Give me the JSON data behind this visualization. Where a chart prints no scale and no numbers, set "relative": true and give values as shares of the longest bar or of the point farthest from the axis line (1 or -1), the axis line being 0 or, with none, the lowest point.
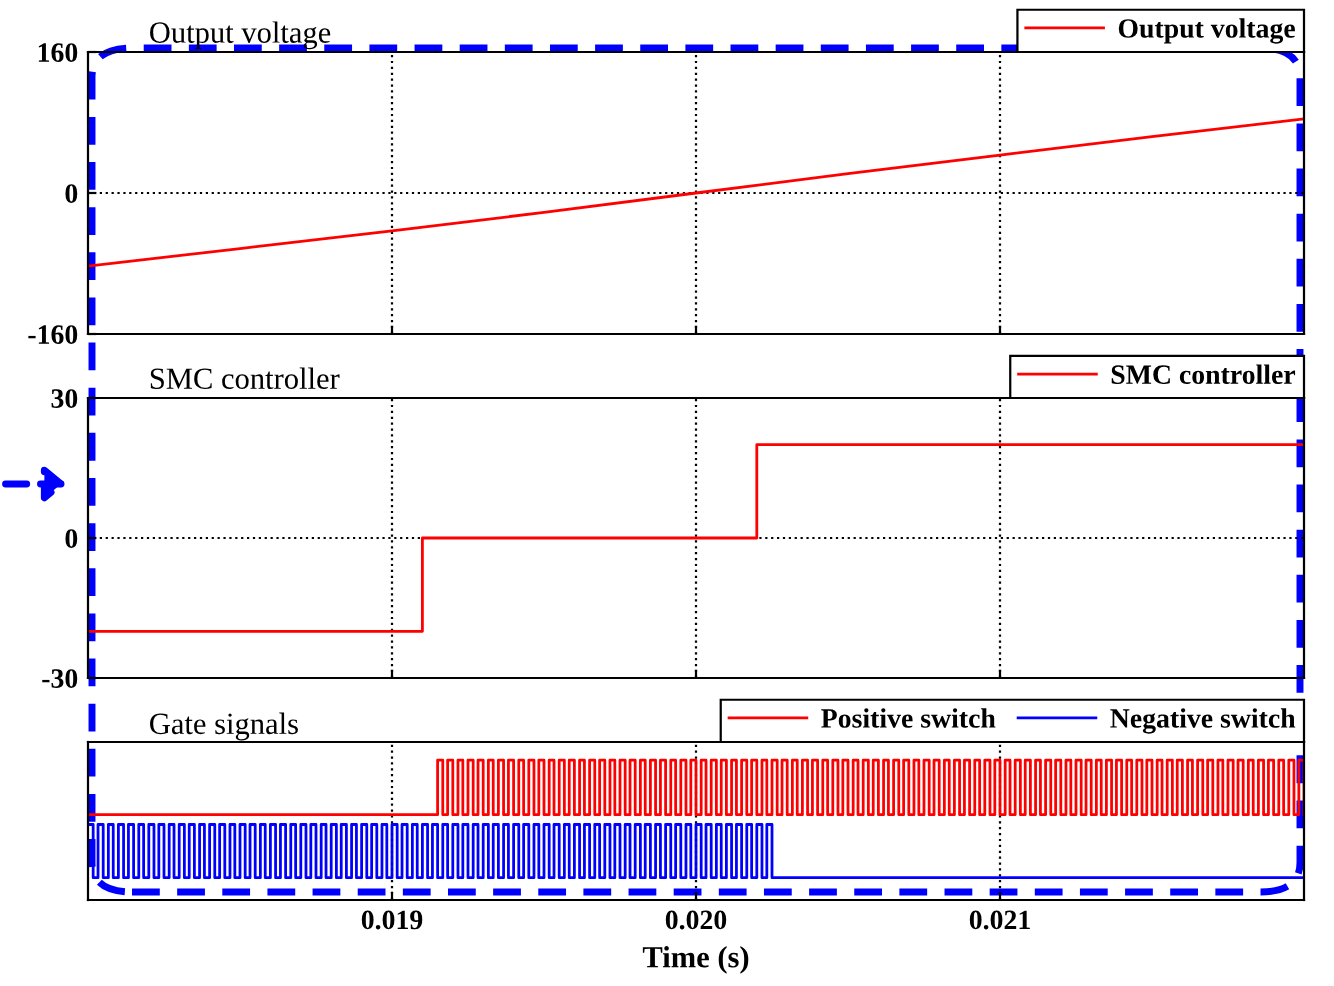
{
  "chart_data": [
    {
      "type": "line",
      "title": "Output voltage",
      "xlim": [
        0.018,
        0.022
      ],
      "xticks": [
        0.019,
        0.02,
        0.021
      ],
      "ylim": [
        -160,
        160
      ],
      "yticks": [
        -160,
        0,
        160
      ],
      "grid": true,
      "legend": "top right",
      "tick_labels": "y",
      "series": [
        {
          "name": "Output voltage",
          "color": "#ff0000",
          "x": [
            0.018,
            0.0185,
            0.019,
            0.0195,
            0.02,
            0.0205,
            0.021,
            0.0215,
            0.022
          ],
          "values": [
            -83,
            -63,
            -43,
            -22,
            0,
            22,
            43,
            64,
            84
          ]
        }
      ]
    },
    {
      "type": "step",
      "title": "SMC controller",
      "xlim": [
        0.018,
        0.022
      ],
      "xticks": [
        0.019,
        0.02,
        0.021
      ],
      "ylim": [
        -30,
        30
      ],
      "yticks": [
        -30,
        0,
        30
      ],
      "grid": true,
      "legend": "top right",
      "tick_labels": "y",
      "series": [
        {
          "name": "SMC controller",
          "color": "#ff0000",
          "x": [
            0.018,
            0.0191,
            0.0202,
            0.022
          ],
          "values": [
            -20,
            0,
            20,
            20
          ]
        }
      ]
    },
    {
      "type": "step",
      "title": "Gate signals",
      "xlabel": "Time (s)",
      "xlim": [
        0.018,
        0.022
      ],
      "xticks": [
        0.019,
        {
          "value": 0.02,
          "label": "0.020"
        },
        0.021
      ],
      "relative": true,
      "grid": "x",
      "legend": "top right",
      "tick_labels": "x",
      "series": [
        {
          "name": "Positive switch",
          "color": "#ff0000",
          "x": [
            0.018,
            0.01915,
            0.019167,
            0.019183,
            0.0192,
            0.019217,
            0.019233,
            0.01925,
            0.019267,
            0.019283,
            0.0193,
            0.019317,
            0.019333,
            0.01935,
            0.019367,
            0.019383,
            0.0194,
            0.019417,
            0.019433,
            0.01945,
            0.019467,
            0.019483,
            0.0195,
            0.019517,
            0.019533,
            0.01955,
            0.019567,
            0.019583,
            0.0196,
            0.019617,
            0.019633,
            0.01965,
            0.019667,
            0.019683,
            0.0197,
            0.019717,
            0.019733,
            0.01975,
            0.019767,
            0.019783,
            0.0198,
            0.019817,
            0.019833,
            0.01985,
            0.019867,
            0.019883,
            0.0199,
            0.019917,
            0.019933,
            0.01995,
            0.019967,
            0.019983,
            0.02,
            0.020017,
            0.020033,
            0.02005,
            0.020067,
            0.020083,
            0.0201,
            0.020117,
            0.020133,
            0.02015,
            0.020167,
            0.020183,
            0.0202,
            0.020217,
            0.020233,
            0.02025,
            0.020267,
            0.020283,
            0.0203,
            0.020317,
            0.020333,
            0.02035,
            0.020367,
            0.020383,
            0.0204,
            0.020417,
            0.020433,
            0.02045,
            0.020467,
            0.020483,
            0.0205,
            0.020517,
            0.020533,
            0.02055,
            0.020567,
            0.020583,
            0.0206,
            0.020617,
            0.020633,
            0.02065,
            0.020667,
            0.020683,
            0.0207,
            0.020717,
            0.020733,
            0.02075,
            0.020767,
            0.020783,
            0.0208,
            0.020817,
            0.020833,
            0.02085,
            0.020867,
            0.020883,
            0.0209,
            0.020917,
            0.020933,
            0.02095,
            0.020967,
            0.020983,
            0.021,
            0.021017,
            0.021033,
            0.02105,
            0.021067,
            0.021083,
            0.0211,
            0.021117,
            0.021133,
            0.02115,
            0.021167,
            0.021183,
            0.0212,
            0.021217,
            0.021233,
            0.02125,
            0.021267,
            0.021283,
            0.0213,
            0.021317,
            0.021333,
            0.02135,
            0.021367,
            0.021383,
            0.0214,
            0.021417,
            0.021433,
            0.02145,
            0.021467,
            0.021483,
            0.0215,
            0.021517,
            0.021533,
            0.02155,
            0.021567,
            0.021583,
            0.0216,
            0.021617,
            0.021633,
            0.02165,
            0.021667,
            0.021683,
            0.0217,
            0.021717,
            0.021733,
            0.02175,
            0.021767,
            0.021783,
            0.0218,
            0.021817,
            0.021833,
            0.02185,
            0.021867,
            0.021883,
            0.0219,
            0.021917,
            0.021933,
            0.02195,
            0.021967,
            0.021983,
            0.022
          ],
          "values": [
            0.61,
            1,
            0.61,
            1,
            0.61,
            1,
            0.61,
            1,
            0.61,
            1,
            0.61,
            1,
            0.61,
            1,
            0.61,
            1,
            0.61,
            1,
            0.61,
            1,
            0.61,
            1,
            0.61,
            1,
            0.61,
            1,
            0.61,
            1,
            0.61,
            1,
            0.61,
            1,
            0.61,
            1,
            0.61,
            1,
            0.61,
            1,
            0.61,
            1,
            0.61,
            1,
            0.61,
            1,
            0.61,
            1,
            0.61,
            1,
            0.61,
            1,
            0.61,
            1,
            0.61,
            1,
            0.61,
            1,
            0.61,
            1,
            0.61,
            1,
            0.61,
            1,
            0.61,
            1,
            0.61,
            1,
            0.61,
            1,
            0.61,
            1,
            0.61,
            1,
            0.61,
            1,
            0.61,
            1,
            0.61,
            1,
            0.61,
            1,
            0.61,
            1,
            0.61,
            1,
            0.61,
            1,
            0.61,
            1,
            0.61,
            1,
            0.61,
            1,
            0.61,
            1,
            0.61,
            1,
            0.61,
            1,
            0.61,
            1,
            0.61,
            1,
            0.61,
            1,
            0.61,
            1,
            0.61,
            1,
            0.61,
            1,
            0.61,
            1,
            0.61,
            1,
            0.61,
            1,
            0.61,
            1,
            0.61,
            1,
            0.61,
            1,
            0.61,
            1,
            0.61,
            1,
            0.61,
            1,
            0.61,
            1,
            0.61,
            1,
            0.61,
            1,
            0.61,
            1,
            0.61,
            1,
            0.61,
            1,
            0.61,
            1,
            0.61,
            1,
            0.61,
            1,
            0.61,
            1,
            0.61,
            1,
            0.61,
            1,
            0.61,
            1,
            0.61,
            1,
            0.61,
            1,
            0.61,
            1,
            0.61,
            1,
            0.61,
            1,
            0.61,
            1,
            0.61,
            1,
            0.61,
            1,
            0.61,
            1,
            0.61
          ]
        },
        {
          "name": "Negative switch",
          "color": "#0000ff",
          "x": [
            0.018,
            0.018017,
            0.018033,
            0.01805,
            0.018067,
            0.018083,
            0.0181,
            0.018117,
            0.018133,
            0.01815,
            0.018167,
            0.018183,
            0.0182,
            0.018217,
            0.018233,
            0.01825,
            0.018267,
            0.018283,
            0.0183,
            0.018317,
            0.018333,
            0.01835,
            0.018367,
            0.018383,
            0.0184,
            0.018417,
            0.018433,
            0.01845,
            0.018467,
            0.018483,
            0.0185,
            0.018517,
            0.018533,
            0.01855,
            0.018567,
            0.018583,
            0.0186,
            0.018617,
            0.018633,
            0.01865,
            0.018667,
            0.018683,
            0.0187,
            0.018717,
            0.018733,
            0.01875,
            0.018767,
            0.018783,
            0.0188,
            0.018817,
            0.018833,
            0.01885,
            0.018867,
            0.018883,
            0.0189,
            0.018917,
            0.018933,
            0.01895,
            0.018967,
            0.018983,
            0.019,
            0.019017,
            0.019033,
            0.01905,
            0.019067,
            0.019083,
            0.0191,
            0.019117,
            0.019133,
            0.01915,
            0.019167,
            0.019183,
            0.0192,
            0.019217,
            0.019233,
            0.01925,
            0.019267,
            0.019283,
            0.0193,
            0.019317,
            0.019333,
            0.01935,
            0.019367,
            0.019383,
            0.0194,
            0.019417,
            0.019433,
            0.01945,
            0.019467,
            0.019483,
            0.0195,
            0.019517,
            0.019533,
            0.01955,
            0.019567,
            0.019583,
            0.0196,
            0.019617,
            0.019633,
            0.01965,
            0.019667,
            0.019683,
            0.0197,
            0.019717,
            0.019733,
            0.01975,
            0.019767,
            0.019783,
            0.0198,
            0.019817,
            0.019833,
            0.01985,
            0.019867,
            0.019883,
            0.0199,
            0.019917,
            0.019933,
            0.01995,
            0.019967,
            0.019983,
            0.02,
            0.020017,
            0.020033,
            0.02005,
            0.020067,
            0.020083,
            0.0201,
            0.020117,
            0.020133,
            0.02015,
            0.020167,
            0.020183,
            0.0202,
            0.020217,
            0.020233,
            0.02025,
            0.022
          ],
          "values": [
            0.54,
            0.16,
            0.54,
            0.16,
            0.54,
            0.16,
            0.54,
            0.16,
            0.54,
            0.16,
            0.54,
            0.16,
            0.54,
            0.16,
            0.54,
            0.16,
            0.54,
            0.16,
            0.54,
            0.16,
            0.54,
            0.16,
            0.54,
            0.16,
            0.54,
            0.16,
            0.54,
            0.16,
            0.54,
            0.16,
            0.54,
            0.16,
            0.54,
            0.16,
            0.54,
            0.16,
            0.54,
            0.16,
            0.54,
            0.16,
            0.54,
            0.16,
            0.54,
            0.16,
            0.54,
            0.16,
            0.54,
            0.16,
            0.54,
            0.16,
            0.54,
            0.16,
            0.54,
            0.16,
            0.54,
            0.16,
            0.54,
            0.16,
            0.54,
            0.16,
            0.54,
            0.16,
            0.54,
            0.16,
            0.54,
            0.16,
            0.54,
            0.16,
            0.54,
            0.16,
            0.54,
            0.16,
            0.54,
            0.16,
            0.54,
            0.16,
            0.54,
            0.16,
            0.54,
            0.16,
            0.54,
            0.16,
            0.54,
            0.16,
            0.54,
            0.16,
            0.54,
            0.16,
            0.54,
            0.16,
            0.54,
            0.16,
            0.54,
            0.16,
            0.54,
            0.16,
            0.54,
            0.16,
            0.54,
            0.16,
            0.54,
            0.16,
            0.54,
            0.16,
            0.54,
            0.16,
            0.54,
            0.16,
            0.54,
            0.16,
            0.54,
            0.16,
            0.54,
            0.16,
            0.54,
            0.16,
            0.54,
            0.16,
            0.54,
            0.16,
            0.54,
            0.16,
            0.54,
            0.16,
            0.54,
            0.16,
            0.54,
            0.16,
            0.54,
            0.16,
            0.54,
            0.16,
            0.54,
            0.16,
            0.54,
            0.16,
            0.16
          ]
        }
      ]
    }
  ]
}
